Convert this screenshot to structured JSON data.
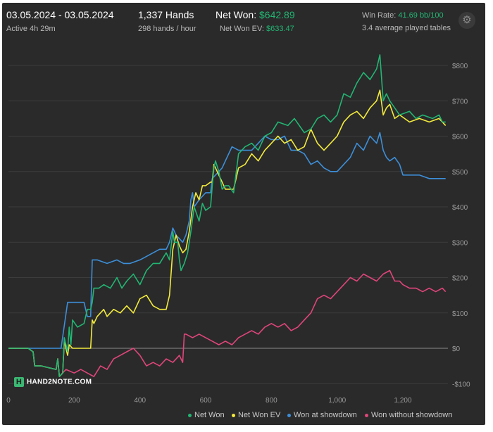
{
  "header": {
    "date_range": "03.05.2024 - 03.05.2024",
    "active": "Active 4h 29m",
    "hands": "1,337 Hands",
    "hands_per_hour": "298 hands / hour",
    "net_won_label": "Net Won: ",
    "net_won_value": "$642.89",
    "net_won_ev_label": "Net Won  EV: ",
    "net_won_ev_value": "$633.47",
    "win_rate_label": "Win Rate: ",
    "win_rate_value": "41.69 bb/100",
    "tables": "3.4 average played tables",
    "settings_icon": "gear-icon"
  },
  "logo_text": "HAND2NOTE.COM",
  "colors": {
    "net_won": "#22b573",
    "net_won_ev": "#f2ea3c",
    "showdown": "#3d8fd9",
    "non_showdown": "#e0457b",
    "grid": "#3c3c3c",
    "zero_line": "#8a8a8a"
  },
  "chart_data": {
    "type": "line",
    "xlim": [
      0,
      1337
    ],
    "ylim": [
      -100,
      850
    ],
    "x_ticks": [
      0,
      200,
      400,
      600,
      800,
      1000,
      1200
    ],
    "x_tick_labels": [
      "0",
      "200",
      "400",
      "600",
      "800",
      "1,000",
      "1,200"
    ],
    "y_ticks": [
      -100,
      0,
      100,
      200,
      300,
      400,
      500,
      600,
      700,
      800
    ],
    "y_tick_labels": [
      "-$100",
      "$0",
      "$100",
      "$200",
      "$300",
      "$400",
      "$500",
      "$600",
      "$700",
      "$800"
    ],
    "series": [
      {
        "name": "Net Won",
        "points": [
          [
            0,
            0
          ],
          [
            60,
            0
          ],
          [
            75,
            -10
          ],
          [
            80,
            -50
          ],
          [
            100,
            -50
          ],
          [
            145,
            -60
          ],
          [
            150,
            -30
          ],
          [
            155,
            -80
          ],
          [
            165,
            -70
          ],
          [
            170,
            30
          ],
          [
            180,
            -10
          ],
          [
            185,
            60
          ],
          [
            190,
            10
          ],
          [
            195,
            80
          ],
          [
            210,
            60
          ],
          [
            230,
            70
          ],
          [
            240,
            110
          ],
          [
            250,
            110
          ],
          [
            255,
            130
          ],
          [
            260,
            170
          ],
          [
            275,
            170
          ],
          [
            290,
            180
          ],
          [
            310,
            170
          ],
          [
            330,
            200
          ],
          [
            345,
            170
          ],
          [
            360,
            190
          ],
          [
            380,
            210
          ],
          [
            400,
            180
          ],
          [
            420,
            220
          ],
          [
            440,
            240
          ],
          [
            460,
            240
          ],
          [
            480,
            270
          ],
          [
            490,
            250
          ],
          [
            500,
            330
          ],
          [
            505,
            300
          ],
          [
            515,
            300
          ],
          [
            520,
            250
          ],
          [
            525,
            220
          ],
          [
            535,
            240
          ],
          [
            545,
            270
          ],
          [
            555,
            330
          ],
          [
            565,
            400
          ],
          [
            580,
            360
          ],
          [
            590,
            410
          ],
          [
            600,
            390
          ],
          [
            615,
            400
          ],
          [
            620,
            460
          ],
          [
            625,
            510
          ],
          [
            630,
            530
          ],
          [
            640,
            500
          ],
          [
            650,
            450
          ],
          [
            660,
            460
          ],
          [
            670,
            460
          ],
          [
            685,
            440
          ],
          [
            700,
            550
          ],
          [
            720,
            570
          ],
          [
            740,
            580
          ],
          [
            760,
            560
          ],
          [
            780,
            600
          ],
          [
            800,
            610
          ],
          [
            820,
            640
          ],
          [
            850,
            630
          ],
          [
            870,
            650
          ],
          [
            900,
            610
          ],
          [
            920,
            620
          ],
          [
            940,
            650
          ],
          [
            960,
            660
          ],
          [
            980,
            640
          ],
          [
            1000,
            660
          ],
          [
            1020,
            720
          ],
          [
            1040,
            710
          ],
          [
            1060,
            750
          ],
          [
            1080,
            780
          ],
          [
            1100,
            760
          ],
          [
            1120,
            790
          ],
          [
            1130,
            830
          ],
          [
            1140,
            700
          ],
          [
            1150,
            720
          ],
          [
            1160,
            700
          ],
          [
            1175,
            680
          ],
          [
            1190,
            660
          ],
          [
            1220,
            670
          ],
          [
            1240,
            650
          ],
          [
            1260,
            660
          ],
          [
            1290,
            650
          ],
          [
            1310,
            660
          ],
          [
            1320,
            640
          ],
          [
            1330,
            640
          ]
        ]
      },
      {
        "name": "Net Won  EV",
        "points": [
          [
            0,
            0
          ],
          [
            60,
            0
          ],
          [
            75,
            -10
          ],
          [
            80,
            -50
          ],
          [
            100,
            -50
          ],
          [
            145,
            -60
          ],
          [
            150,
            -30
          ],
          [
            155,
            -80
          ],
          [
            165,
            -70
          ],
          [
            170,
            20
          ],
          [
            180,
            -20
          ],
          [
            185,
            10
          ],
          [
            195,
            0
          ],
          [
            210,
            0
          ],
          [
            240,
            0
          ],
          [
            250,
            0
          ],
          [
            255,
            80
          ],
          [
            260,
            70
          ],
          [
            270,
            90
          ],
          [
            290,
            110
          ],
          [
            300,
            90
          ],
          [
            320,
            110
          ],
          [
            340,
            100
          ],
          [
            360,
            120
          ],
          [
            380,
            100
          ],
          [
            400,
            140
          ],
          [
            420,
            150
          ],
          [
            440,
            120
          ],
          [
            460,
            110
          ],
          [
            480,
            110
          ],
          [
            490,
            150
          ],
          [
            500,
            280
          ],
          [
            510,
            320
          ],
          [
            520,
            290
          ],
          [
            530,
            270
          ],
          [
            540,
            280
          ],
          [
            550,
            330
          ],
          [
            560,
            400
          ],
          [
            570,
            440
          ],
          [
            580,
            420
          ],
          [
            590,
            460
          ],
          [
            600,
            460
          ],
          [
            615,
            470
          ],
          [
            620,
            470
          ],
          [
            625,
            520
          ],
          [
            630,
            510
          ],
          [
            640,
            490
          ],
          [
            650,
            470
          ],
          [
            660,
            450
          ],
          [
            670,
            450
          ],
          [
            685,
            450
          ],
          [
            700,
            510
          ],
          [
            720,
            520
          ],
          [
            740,
            550
          ],
          [
            760,
            530
          ],
          [
            780,
            560
          ],
          [
            800,
            580
          ],
          [
            820,
            600
          ],
          [
            840,
            580
          ],
          [
            860,
            590
          ],
          [
            880,
            560
          ],
          [
            900,
            570
          ],
          [
            920,
            620
          ],
          [
            940,
            580
          ],
          [
            960,
            560
          ],
          [
            980,
            580
          ],
          [
            1000,
            600
          ],
          [
            1020,
            640
          ],
          [
            1040,
            660
          ],
          [
            1060,
            670
          ],
          [
            1080,
            650
          ],
          [
            1100,
            680
          ],
          [
            1120,
            700
          ],
          [
            1130,
            730
          ],
          [
            1140,
            660
          ],
          [
            1150,
            680
          ],
          [
            1160,
            690
          ],
          [
            1175,
            650
          ],
          [
            1190,
            660
          ],
          [
            1220,
            640
          ],
          [
            1250,
            650
          ],
          [
            1280,
            640
          ],
          [
            1310,
            650
          ],
          [
            1320,
            640
          ],
          [
            1330,
            630
          ]
        ]
      },
      {
        "name": "Won at showdown",
        "points": [
          [
            0,
            0
          ],
          [
            160,
            0
          ],
          [
            180,
            130
          ],
          [
            230,
            130
          ],
          [
            240,
            90
          ],
          [
            250,
            90
          ],
          [
            255,
            250
          ],
          [
            270,
            250
          ],
          [
            300,
            240
          ],
          [
            330,
            250
          ],
          [
            350,
            240
          ],
          [
            370,
            240
          ],
          [
            400,
            250
          ],
          [
            420,
            260
          ],
          [
            440,
            270
          ],
          [
            460,
            280
          ],
          [
            480,
            280
          ],
          [
            490,
            300
          ],
          [
            500,
            340
          ],
          [
            510,
            320
          ],
          [
            520,
            310
          ],
          [
            530,
            300
          ],
          [
            540,
            320
          ],
          [
            550,
            360
          ],
          [
            555,
            420
          ],
          [
            560,
            440
          ],
          [
            565,
            400
          ],
          [
            580,
            420
          ],
          [
            590,
            430
          ],
          [
            600,
            440
          ],
          [
            615,
            440
          ],
          [
            620,
            480
          ],
          [
            630,
            490
          ],
          [
            640,
            500
          ],
          [
            650,
            510
          ],
          [
            660,
            530
          ],
          [
            680,
            570
          ],
          [
            700,
            560
          ],
          [
            720,
            560
          ],
          [
            740,
            560
          ],
          [
            760,
            580
          ],
          [
            780,
            600
          ],
          [
            800,
            590
          ],
          [
            820,
            590
          ],
          [
            840,
            600
          ],
          [
            860,
            560
          ],
          [
            880,
            560
          ],
          [
            900,
            550
          ],
          [
            920,
            520
          ],
          [
            940,
            530
          ],
          [
            960,
            510
          ],
          [
            980,
            500
          ],
          [
            1000,
            500
          ],
          [
            1020,
            520
          ],
          [
            1040,
            540
          ],
          [
            1060,
            580
          ],
          [
            1080,
            560
          ],
          [
            1100,
            600
          ],
          [
            1120,
            580
          ],
          [
            1130,
            610
          ],
          [
            1140,
            560
          ],
          [
            1150,
            540
          ],
          [
            1160,
            530
          ],
          [
            1175,
            540
          ],
          [
            1190,
            520
          ],
          [
            1200,
            490
          ],
          [
            1220,
            490
          ],
          [
            1250,
            490
          ],
          [
            1280,
            480
          ],
          [
            1310,
            480
          ],
          [
            1330,
            480
          ]
        ]
      },
      {
        "name": "Won without showdown",
        "points": [
          [
            0,
            0
          ],
          [
            60,
            0
          ],
          [
            75,
            -10
          ],
          [
            80,
            -50
          ],
          [
            100,
            -50
          ],
          [
            145,
            -60
          ],
          [
            150,
            -30
          ],
          [
            155,
            -80
          ],
          [
            175,
            -60
          ],
          [
            200,
            -70
          ],
          [
            220,
            -60
          ],
          [
            240,
            -70
          ],
          [
            260,
            -80
          ],
          [
            280,
            -50
          ],
          [
            300,
            -60
          ],
          [
            320,
            -30
          ],
          [
            340,
            -20
          ],
          [
            360,
            -10
          ],
          [
            380,
            0
          ],
          [
            400,
            -20
          ],
          [
            420,
            -50
          ],
          [
            440,
            -40
          ],
          [
            460,
            -50
          ],
          [
            480,
            -30
          ],
          [
            500,
            -40
          ],
          [
            520,
            -20
          ],
          [
            530,
            -40
          ],
          [
            535,
            40
          ],
          [
            540,
            40
          ],
          [
            560,
            30
          ],
          [
            580,
            40
          ],
          [
            600,
            30
          ],
          [
            620,
            20
          ],
          [
            640,
            10
          ],
          [
            660,
            20
          ],
          [
            680,
            10
          ],
          [
            700,
            30
          ],
          [
            720,
            40
          ],
          [
            740,
            50
          ],
          [
            760,
            40
          ],
          [
            780,
            60
          ],
          [
            800,
            70
          ],
          [
            820,
            60
          ],
          [
            840,
            70
          ],
          [
            860,
            50
          ],
          [
            880,
            60
          ],
          [
            900,
            80
          ],
          [
            920,
            100
          ],
          [
            940,
            140
          ],
          [
            960,
            150
          ],
          [
            980,
            140
          ],
          [
            1000,
            160
          ],
          [
            1020,
            180
          ],
          [
            1040,
            200
          ],
          [
            1060,
            190
          ],
          [
            1080,
            210
          ],
          [
            1100,
            200
          ],
          [
            1120,
            190
          ],
          [
            1140,
            210
          ],
          [
            1160,
            220
          ],
          [
            1175,
            190
          ],
          [
            1190,
            190
          ],
          [
            1200,
            180
          ],
          [
            1220,
            170
          ],
          [
            1240,
            170
          ],
          [
            1260,
            160
          ],
          [
            1280,
            170
          ],
          [
            1300,
            160
          ],
          [
            1320,
            170
          ],
          [
            1330,
            160
          ]
        ]
      }
    ]
  }
}
